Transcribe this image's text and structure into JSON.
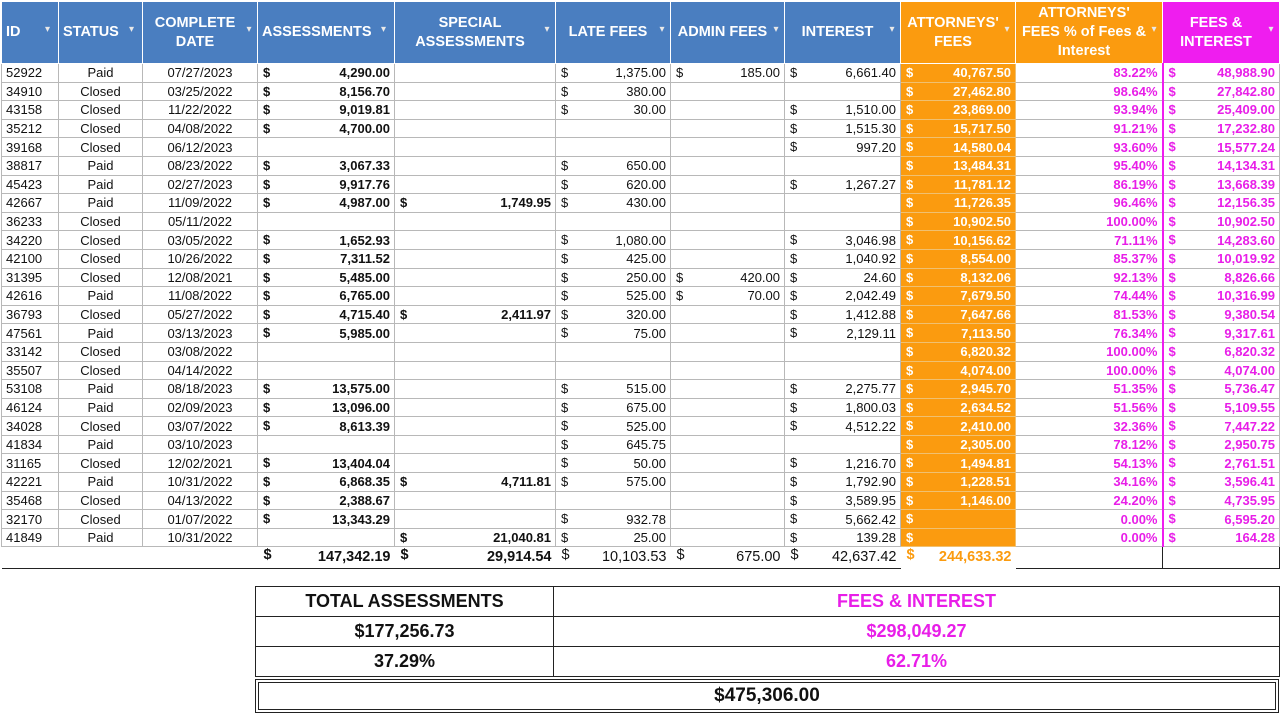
{
  "headers": [
    {
      "label": "ID",
      "color": "blue"
    },
    {
      "label": "STATUS",
      "color": "blue"
    },
    {
      "label": "COMPLETE DATE",
      "color": "blue"
    },
    {
      "label": "ASSESSMENTS",
      "color": "blue"
    },
    {
      "label": "SPECIAL ASSESSMENTS",
      "color": "blue"
    },
    {
      "label": "LATE FEES",
      "color": "blue"
    },
    {
      "label": "ADMIN FEES",
      "color": "blue"
    },
    {
      "label": "INTEREST",
      "color": "blue"
    },
    {
      "label": "ATTORNEYS' FEES",
      "color": "orange"
    },
    {
      "label": "ATTORNEYS' FEES % of Fees & Interest",
      "color": "orange"
    },
    {
      "label": "FEES & INTEREST",
      "color": "magenta"
    }
  ],
  "currency_symbol": "$",
  "colors": {
    "header_blue": "#4a7ec0",
    "attorney_orange": "#fb9b0f",
    "fees_magenta": "#ef1def"
  },
  "rows": [
    {
      "id": "52922",
      "status": "Paid",
      "date": "07/27/2023",
      "assess": "4,290.00",
      "special": "",
      "late": "1,375.00",
      "admin": "185.00",
      "interest": "6,661.40",
      "atty": "40,767.50",
      "pct": "83.22%",
      "fi": "48,988.90"
    },
    {
      "id": "34910",
      "status": "Closed",
      "date": "03/25/2022",
      "assess": "8,156.70",
      "special": "",
      "late": "380.00",
      "admin": "",
      "interest": "",
      "atty": "27,462.80",
      "pct": "98.64%",
      "fi": "27,842.80"
    },
    {
      "id": "43158",
      "status": "Closed",
      "date": "11/22/2022",
      "assess": "9,019.81",
      "special": "",
      "late": "30.00",
      "admin": "",
      "interest": "1,510.00",
      "atty": "23,869.00",
      "pct": "93.94%",
      "fi": "25,409.00"
    },
    {
      "id": "35212",
      "status": "Closed",
      "date": "04/08/2022",
      "assess": "4,700.00",
      "special": "",
      "late": "",
      "admin": "",
      "interest": "1,515.30",
      "atty": "15,717.50",
      "pct": "91.21%",
      "fi": "17,232.80"
    },
    {
      "id": "39168",
      "status": "Closed",
      "date": "06/12/2023",
      "assess": "",
      "special": "",
      "late": "",
      "admin": "",
      "interest": "997.20",
      "atty": "14,580.04",
      "pct": "93.60%",
      "fi": "15,577.24"
    },
    {
      "id": "38817",
      "status": "Paid",
      "date": "08/23/2022",
      "assess": "3,067.33",
      "special": "",
      "late": "650.00",
      "admin": "",
      "interest": "",
      "atty": "13,484.31",
      "pct": "95.40%",
      "fi": "14,134.31"
    },
    {
      "id": "45423",
      "status": "Paid",
      "date": "02/27/2023",
      "assess": "9,917.76",
      "special": "",
      "late": "620.00",
      "admin": "",
      "interest": "1,267.27",
      "atty": "11,781.12",
      "pct": "86.19%",
      "fi": "13,668.39"
    },
    {
      "id": "42667",
      "status": "Paid",
      "date": "11/09/2022",
      "assess": "4,987.00",
      "special": "1,749.95",
      "late": "430.00",
      "admin": "",
      "interest": "",
      "atty": "11,726.35",
      "pct": "96.46%",
      "fi": "12,156.35"
    },
    {
      "id": "36233",
      "status": "Closed",
      "date": "05/11/2022",
      "assess": "",
      "special": "",
      "late": "",
      "admin": "",
      "interest": "",
      "atty": "10,902.50",
      "pct": "100.00%",
      "fi": "10,902.50"
    },
    {
      "id": "34220",
      "status": "Closed",
      "date": "03/05/2022",
      "assess": "1,652.93",
      "special": "",
      "late": "1,080.00",
      "admin": "",
      "interest": "3,046.98",
      "atty": "10,156.62",
      "pct": "71.11%",
      "fi": "14,283.60"
    },
    {
      "id": "42100",
      "status": "Closed",
      "date": "10/26/2022",
      "assess": "7,311.52",
      "special": "",
      "late": "425.00",
      "admin": "",
      "interest": "1,040.92",
      "atty": "8,554.00",
      "pct": "85.37%",
      "fi": "10,019.92"
    },
    {
      "id": "31395",
      "status": "Closed",
      "date": "12/08/2021",
      "assess": "5,485.00",
      "special": "",
      "late": "250.00",
      "admin": "420.00",
      "interest": "24.60",
      "atty": "8,132.06",
      "pct": "92.13%",
      "fi": "8,826.66"
    },
    {
      "id": "42616",
      "status": "Paid",
      "date": "11/08/2022",
      "assess": "6,765.00",
      "special": "",
      "late": "525.00",
      "admin": "70.00",
      "interest": "2,042.49",
      "atty": "7,679.50",
      "pct": "74.44%",
      "fi": "10,316.99"
    },
    {
      "id": "36793",
      "status": "Closed",
      "date": "05/27/2022",
      "assess": "4,715.40",
      "special": "2,411.97",
      "late": "320.00",
      "admin": "",
      "interest": "1,412.88",
      "atty": "7,647.66",
      "pct": "81.53%",
      "fi": "9,380.54"
    },
    {
      "id": "47561",
      "status": "Paid",
      "date": "03/13/2023",
      "assess": "5,985.00",
      "special": "",
      "late": "75.00",
      "admin": "",
      "interest": "2,129.11",
      "atty": "7,113.50",
      "pct": "76.34%",
      "fi": "9,317.61"
    },
    {
      "id": "33142",
      "status": "Closed",
      "date": "03/08/2022",
      "assess": "",
      "special": "",
      "late": "",
      "admin": "",
      "interest": "",
      "atty": "6,820.32",
      "pct": "100.00%",
      "fi": "6,820.32"
    },
    {
      "id": "35507",
      "status": "Closed",
      "date": "04/14/2022",
      "assess": "",
      "special": "",
      "late": "",
      "admin": "",
      "interest": "",
      "atty": "4,074.00",
      "pct": "100.00%",
      "fi": "4,074.00"
    },
    {
      "id": "53108",
      "status": "Paid",
      "date": "08/18/2023",
      "assess": "13,575.00",
      "special": "",
      "late": "515.00",
      "admin": "",
      "interest": "2,275.77",
      "atty": "2,945.70",
      "pct": "51.35%",
      "fi": "5,736.47"
    },
    {
      "id": "46124",
      "status": "Paid",
      "date": "02/09/2023",
      "assess": "13,096.00",
      "special": "",
      "late": "675.00",
      "admin": "",
      "interest": "1,800.03",
      "atty": "2,634.52",
      "pct": "51.56%",
      "fi": "5,109.55"
    },
    {
      "id": "34028",
      "status": "Closed",
      "date": "03/07/2022",
      "assess": "8,613.39",
      "special": "",
      "late": "525.00",
      "admin": "",
      "interest": "4,512.22",
      "atty": "2,410.00",
      "pct": "32.36%",
      "fi": "7,447.22"
    },
    {
      "id": "41834",
      "status": "Paid",
      "date": "03/10/2023",
      "assess": "",
      "special": "",
      "late": "645.75",
      "admin": "",
      "interest": "",
      "atty": "2,305.00",
      "pct": "78.12%",
      "fi": "2,950.75"
    },
    {
      "id": "31165",
      "status": "Closed",
      "date": "12/02/2021",
      "assess": "13,404.04",
      "special": "",
      "late": "50.00",
      "admin": "",
      "interest": "1,216.70",
      "atty": "1,494.81",
      "pct": "54.13%",
      "fi": "2,761.51"
    },
    {
      "id": "42221",
      "status": "Paid",
      "date": "10/31/2022",
      "assess": "6,868.35",
      "special": "4,711.81",
      "late": "575.00",
      "admin": "",
      "interest": "1,792.90",
      "atty": "1,228.51",
      "pct": "34.16%",
      "fi": "3,596.41"
    },
    {
      "id": "35468",
      "status": "Closed",
      "date": "04/13/2022",
      "assess": "2,388.67",
      "special": "",
      "late": "",
      "admin": "",
      "interest": "3,589.95",
      "atty": "1,146.00",
      "pct": "24.20%",
      "fi": "4,735.95"
    },
    {
      "id": "32170",
      "status": "Closed",
      "date": "01/07/2022",
      "assess": "13,343.29",
      "special": "",
      "late": "932.78",
      "admin": "",
      "interest": "5,662.42",
      "atty": "",
      "pct": "0.00%",
      "fi": "6,595.20"
    },
    {
      "id": "41849",
      "status": "Paid",
      "date": "10/31/2022",
      "assess": "",
      "special": "21,040.81",
      "late": "25.00",
      "admin": "",
      "interest": "139.28",
      "atty": "",
      "pct": "0.00%",
      "fi": "164.28"
    }
  ],
  "totals": {
    "assess": "147,342.19",
    "special": "29,914.54",
    "late": "10,103.53",
    "admin": "675.00",
    "interest": "42,637.42",
    "atty": "244,633.32"
  },
  "summary": {
    "total_assessments_label": "TOTAL ASSESSMENTS",
    "fees_interest_label": "FEES & INTEREST",
    "total_assessments_value": "$177,256.73",
    "fees_interest_value": "$298,049.27",
    "total_assessments_pct": "37.29%",
    "fees_interest_pct": "62.71%",
    "grand_total": "$475,306.00"
  }
}
